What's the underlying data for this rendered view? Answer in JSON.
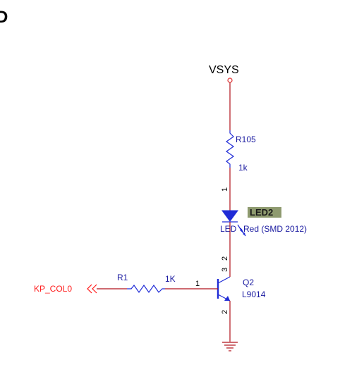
{
  "corner_text": "D",
  "power": {
    "net": "VSYS"
  },
  "r105": {
    "ref": "R105",
    "value": "1k"
  },
  "led": {
    "ref": "LED2",
    "value": "Red (SMD 2012)",
    "label_prefix": "LED",
    "pin1": "1",
    "pin2": "2"
  },
  "transistor": {
    "ref": "Q2",
    "value": "L9014",
    "pin_base": "1",
    "pin_collector": "3",
    "pin_emitter": "2"
  },
  "r1": {
    "ref": "R1",
    "value": "1K"
  },
  "port": {
    "label": "KP_COL0",
    "color": "#ff1a1a"
  },
  "colors": {
    "wire": "#b0101a",
    "component": "#1f2bd6",
    "ref_text": "#1a1aa0",
    "highlight": "#8e9a6f"
  }
}
